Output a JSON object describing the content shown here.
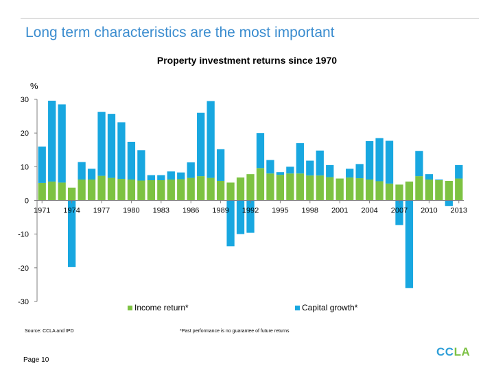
{
  "slide_title": "Long term characteristics are the most important",
  "source": "Source: CCLA and IPD",
  "disclaimer": "*Past performance is no guarantee of future returns",
  "page_label": "Page 10",
  "logo": {
    "part1": "CC",
    "part2": "LA"
  },
  "colors": {
    "income": "#7dc242",
    "capital": "#18a7e0",
    "title": "#3a8ccf",
    "axis": "#7f7f7f"
  },
  "chart_data": {
    "type": "bar",
    "title": "Property investment returns since 1970",
    "ylabel": "%",
    "ylim": [
      -30,
      30
    ],
    "yticks": [
      30,
      20,
      10,
      0,
      -10,
      -20,
      -30
    ],
    "tick_labels": [
      "1971",
      "1974",
      "1977",
      "1980",
      "1983",
      "1986",
      "1989",
      "1992",
      "1995",
      "1998",
      "2001",
      "2004",
      "2007",
      "2010",
      "2013"
    ],
    "x": [
      1971,
      1972,
      1973,
      1974,
      1975,
      1976,
      1977,
      1978,
      1979,
      1980,
      1981,
      1982,
      1983,
      1984,
      1985,
      1986,
      1987,
      1988,
      1989,
      1990,
      1991,
      1992,
      1993,
      1994,
      1995,
      1996,
      1997,
      1998,
      1999,
      2000,
      2001,
      2002,
      2003,
      2004,
      2005,
      2006,
      2007,
      2008,
      2009,
      2010,
      2011,
      2012,
      2013
    ],
    "stacked": true,
    "series": [
      {
        "name": "Income return*",
        "values": [
          5.2,
          5.6,
          5.3,
          3.8,
          6.2,
          6.2,
          7.3,
          6.7,
          6.4,
          6.2,
          5.9,
          6.0,
          6.0,
          6.2,
          6.3,
          6.7,
          7.2,
          6.7,
          5.8,
          5.3,
          6.8,
          7.8,
          9.6,
          8.0,
          7.6,
          8.0,
          8.0,
          7.4,
          7.4,
          6.9,
          6.5,
          6.8,
          6.6,
          6.2,
          5.7,
          5.0,
          4.7,
          5.6,
          7.2,
          6.2,
          6.0,
          5.8,
          6.5
        ]
      },
      {
        "name": "Capital growth*",
        "values": [
          10.8,
          24.0,
          23.2,
          -19.8,
          5.2,
          3.2,
          19.0,
          19.0,
          16.8,
          11.2,
          9.0,
          1.5,
          1.5,
          2.4,
          2.0,
          4.6,
          18.8,
          22.8,
          9.4,
          -13.6,
          -10.0,
          -9.6,
          10.4,
          4.0,
          0.8,
          2.0,
          9.0,
          4.4,
          7.4,
          3.6,
          0.0,
          2.6,
          4.2,
          11.4,
          12.8,
          12.7,
          -7.3,
          -26.0,
          7.5,
          1.6,
          0.2,
          -1.7,
          4.0
        ]
      }
    ],
    "legend": [
      {
        "name": "Income return*",
        "color_key": "income"
      },
      {
        "name": "Capital growth*",
        "color_key": "capital"
      }
    ]
  }
}
